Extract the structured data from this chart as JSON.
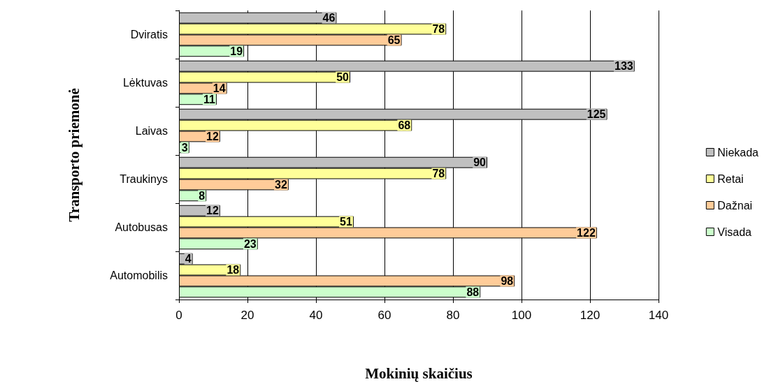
{
  "chart_data": {
    "type": "bar",
    "orientation": "horizontal",
    "xlabel": "Mokinių skaičius",
    "ylabel": "Transporto priemonė",
    "categories": [
      "Dviratis",
      "Lėktuvas",
      "Laivas",
      "Traukinys",
      "Autobusas",
      "Automobilis"
    ],
    "series": [
      {
        "name": "Niekada",
        "color": "#c0c0c0",
        "values": [
          46,
          133,
          125,
          90,
          12,
          4
        ]
      },
      {
        "name": "Retai",
        "color": "#ffff99",
        "values": [
          78,
          50,
          68,
          78,
          51,
          18
        ]
      },
      {
        "name": "Dažnai",
        "color": "#ffcc99",
        "values": [
          65,
          14,
          12,
          32,
          122,
          98
        ]
      },
      {
        "name": "Visada",
        "color": "#ccffcc",
        "values": [
          19,
          11,
          3,
          8,
          23,
          88
        ]
      }
    ],
    "xlim": [
      0,
      140
    ],
    "xticks": [
      0,
      20,
      40,
      60,
      80,
      100,
      120,
      140
    ],
    "grid": "x",
    "legend": "right",
    "data_labels": true
  }
}
